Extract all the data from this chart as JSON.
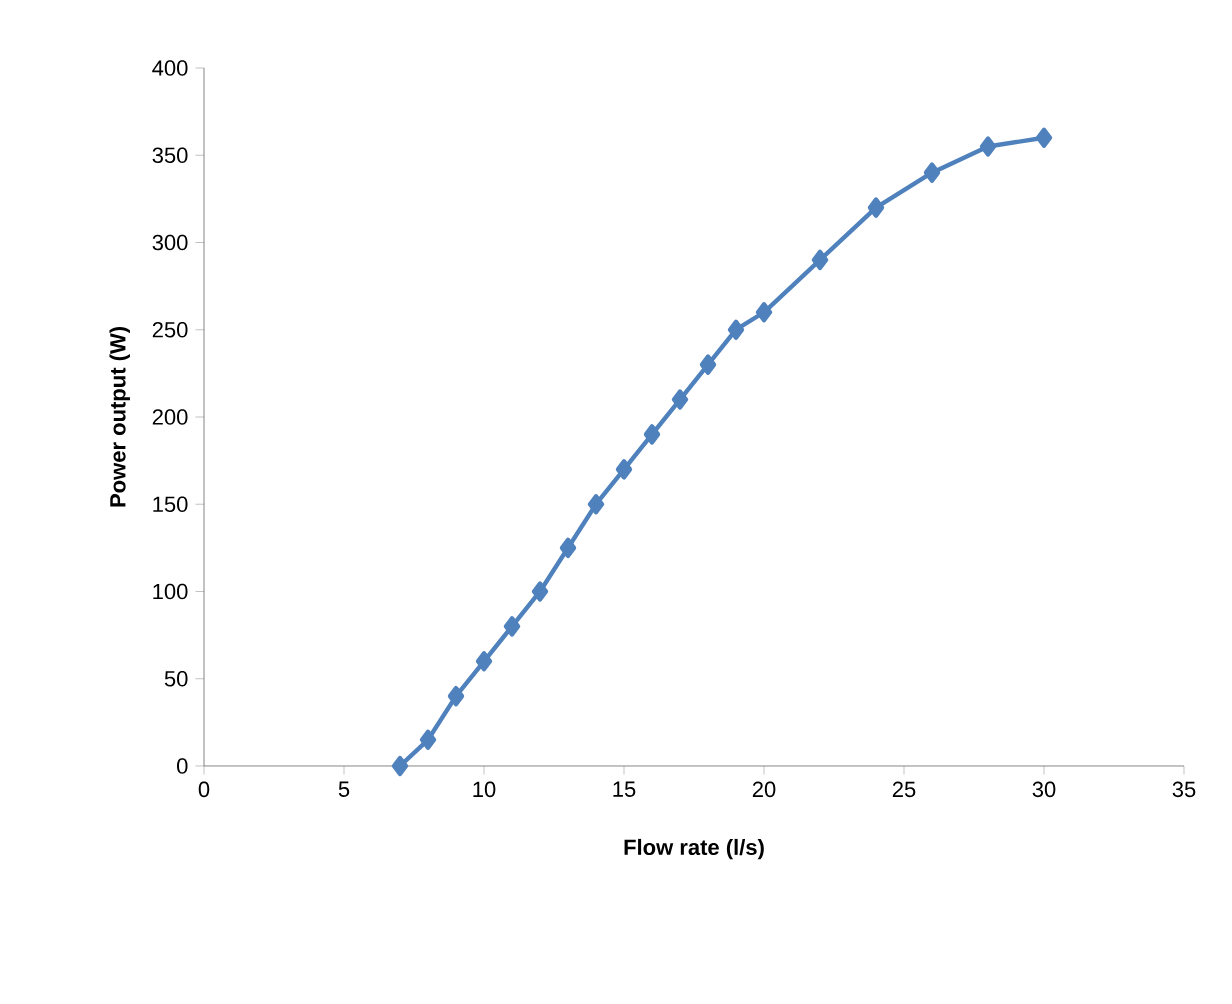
{
  "chart_data": {
    "type": "line",
    "xlabel": "Flow rate (l/s)",
    "ylabel": "Power output (W)",
    "x": [
      7,
      8,
      9,
      10,
      11,
      12,
      13,
      14,
      15,
      16,
      17,
      18,
      19,
      20,
      22,
      24,
      26,
      28,
      30
    ],
    "series": [
      {
        "color": "#4f81bd",
        "values": [
          0,
          15,
          40,
          60,
          80,
          100,
          125,
          150,
          170,
          190,
          210,
          230,
          250,
          260,
          290,
          320,
          340,
          355,
          360
        ]
      }
    ],
    "xlim": [
      0,
      35
    ],
    "ylim": [
      0,
      400
    ],
    "xticks": [
      0,
      5,
      10,
      15,
      20,
      25,
      30,
      35
    ],
    "yticks": [
      0,
      50,
      100,
      150,
      200,
      250,
      300,
      350,
      400
    ],
    "grid": false,
    "marker": "diamond",
    "line_style": "solid"
  }
}
